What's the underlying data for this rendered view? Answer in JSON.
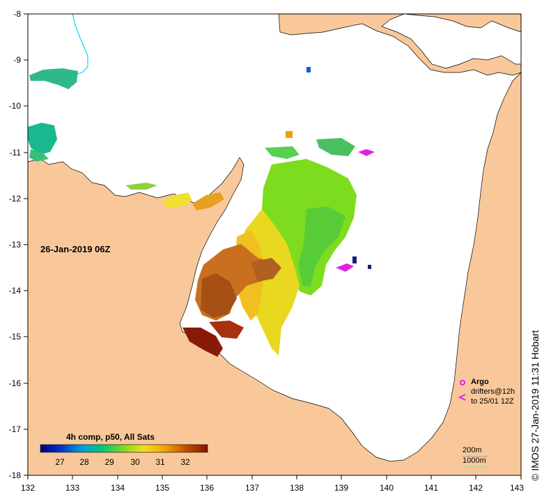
{
  "map": {
    "date_label": "26-Jan-2019 06Z",
    "credit": "©  IMOS 27-Jan-2019 11:31 Hobart",
    "x_ticks": [
      "132",
      "133",
      "134",
      "135",
      "136",
      "137",
      "138",
      "139",
      "140",
      "141",
      "142",
      "143"
    ],
    "y_ticks": [
      "-8",
      "-9",
      "-10",
      "-11",
      "-12",
      "-13",
      "-14",
      "-15",
      "-16",
      "-17",
      "-18"
    ],
    "colors": {
      "land": "#f9c89a",
      "sea": "#ffffff",
      "frame": "#000000"
    }
  },
  "colorbar": {
    "title": "4h comp, p50, All Sats",
    "ticks": [
      "27",
      "28",
      "29",
      "30",
      "31",
      "32"
    ],
    "stops": [
      "#00007a",
      "#0033cc",
      "#00a0d8",
      "#00c878",
      "#7edc1e",
      "#f0e020",
      "#f0a000",
      "#c05000",
      "#8a1000"
    ]
  },
  "legend": {
    "argo_label": "Argo",
    "drifter_line1": "drifters@12h",
    "drifter_line2": "to 25/01 12Z",
    "depth_200": "200m",
    "depth_1000": "1000m"
  }
}
